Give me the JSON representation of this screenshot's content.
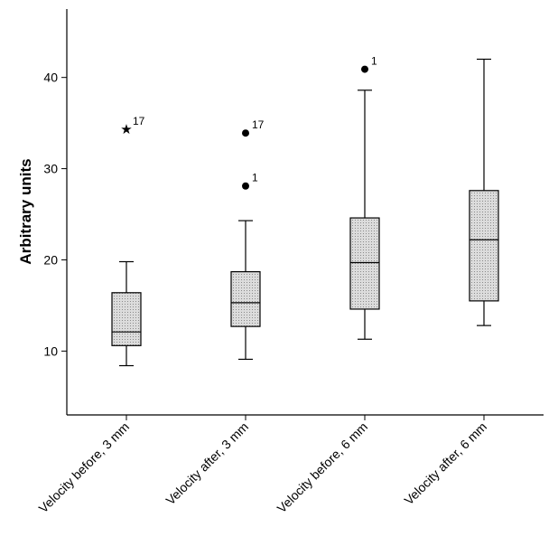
{
  "chart_data": {
    "type": "box",
    "ylabel": "Arbitrary units",
    "xlabel": "",
    "title": "",
    "ylim": [
      3,
      47.5
    ],
    "yticks": [
      10,
      20,
      30,
      40
    ],
    "categories": [
      "Velocity before, 3 mm",
      "Velocity after, 3 mm",
      "Velocity before, 6 mm",
      "Velocity after, 6 mm"
    ],
    "boxes": [
      {
        "min": 8.4,
        "q1": 10.6,
        "median": 12.1,
        "q3": 16.4,
        "max": 19.8,
        "outliers": [
          {
            "value": 34.3,
            "label": "17",
            "marker": "star"
          }
        ]
      },
      {
        "min": 9.1,
        "q1": 12.7,
        "median": 15.3,
        "q3": 18.7,
        "max": 24.3,
        "outliers": [
          {
            "value": 28.1,
            "label": "1",
            "marker": "circle"
          },
          {
            "value": 33.9,
            "label": "17",
            "marker": "circle"
          }
        ]
      },
      {
        "min": 11.3,
        "q1": 14.6,
        "median": 19.7,
        "q3": 24.6,
        "max": 38.6,
        "outliers": [
          {
            "value": 40.9,
            "label": "1",
            "marker": "circle"
          }
        ]
      },
      {
        "min": 12.8,
        "q1": 15.5,
        "median": 22.2,
        "q3": 27.6,
        "max": 42.0,
        "outliers": []
      }
    ],
    "grid": false,
    "legend": "none"
  }
}
